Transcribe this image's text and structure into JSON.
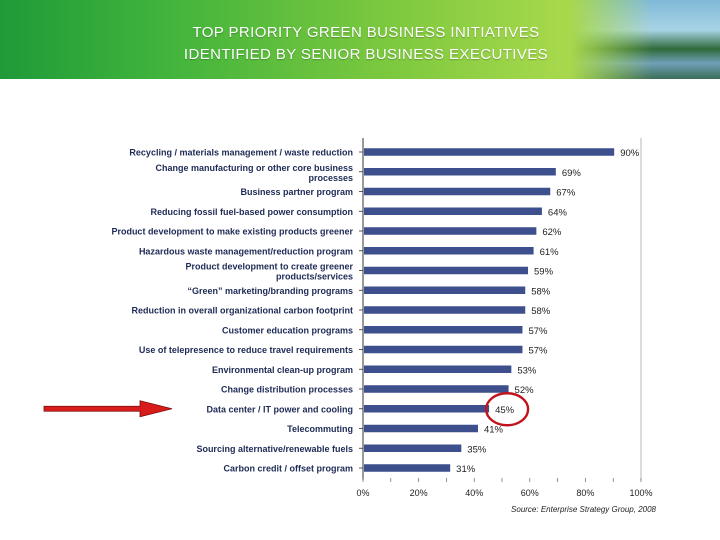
{
  "slide": {
    "title_line1": "TOP PRIORITY GREEN BUSINESS INITIATIVES",
    "title_line2": "IDENTIFIED BY SENIOR BUSINESS EXECUTIVES"
  },
  "colors": {
    "bar": "#3d4f8c",
    "highlight_circle": "#c0141c",
    "arrow": "#d81b1b",
    "banner": "#4cae3a"
  },
  "chart_data": {
    "type": "bar",
    "orientation": "horizontal",
    "categories": [
      "Recycling / materials management / waste reduction",
      [
        "Change manufacturing or other core business",
        "processes"
      ],
      "Business partner program",
      "Reducing fossil fuel-based power consumption",
      "Product development to make existing products greener",
      "Hazardous waste management/reduction program",
      [
        "Product development to create greener",
        "products/services"
      ],
      "“Green” marketing/branding programs",
      "Reduction in overall organizational carbon footprint",
      "Customer education programs",
      "Use of telepresence to reduce travel requirements",
      "Environmental clean-up program",
      "Change distribution processes",
      "Data center / IT power and cooling",
      "Telecommuting",
      "Sourcing alternative/renewable fuels",
      "Carbon credit / offset program"
    ],
    "values": [
      90,
      69,
      67,
      64,
      62,
      61,
      59,
      58,
      58,
      57,
      57,
      53,
      52,
      45,
      41,
      35,
      31
    ],
    "data_labels": [
      "90%",
      "69%",
      "67%",
      "64%",
      "62%",
      "61%",
      "59%",
      "58%",
      "58%",
      "57%",
      "57%",
      "53%",
      "52%",
      "45%",
      "41%",
      "35%",
      "31%"
    ],
    "highlighted_category": "Data center / IT power and cooling",
    "xlim": [
      0,
      100
    ],
    "xticks": [
      "0%",
      "20%",
      "40%",
      "60%",
      "80%",
      "100%"
    ],
    "xlabel": "",
    "ylabel": "",
    "grid": false,
    "source": "Source: Enterprise Strategy Group, 2008"
  }
}
